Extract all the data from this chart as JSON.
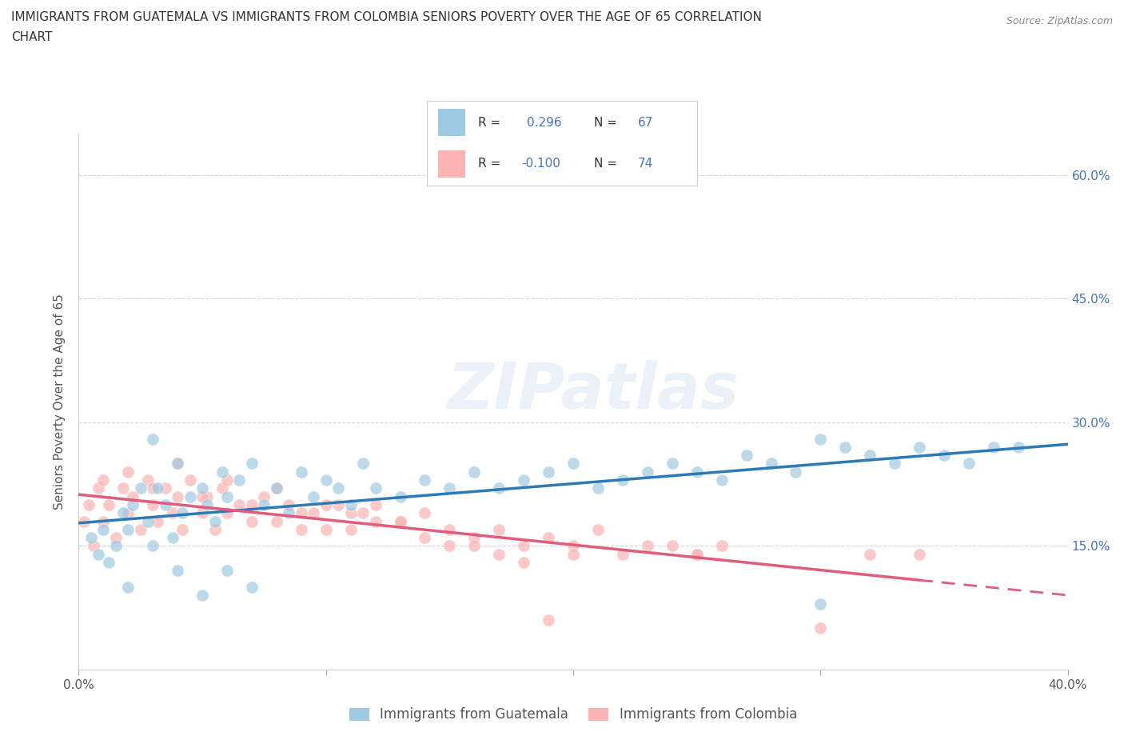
{
  "title_line1": "IMMIGRANTS FROM GUATEMALA VS IMMIGRANTS FROM COLOMBIA SENIORS POVERTY OVER THE AGE OF 65 CORRELATION",
  "title_line2": "CHART",
  "source": "Source: ZipAtlas.com",
  "ylabel": "Seniors Poverty Over the Age of 65",
  "xlim": [
    0.0,
    0.4
  ],
  "ylim": [
    0.0,
    0.65
  ],
  "guatemala_color": "#9ecae1",
  "colombia_color": "#fcb3b3",
  "guatemala_line_color": "#2c7bb6",
  "colombia_line_color": "#e05c7a",
  "R_guatemala": 0.296,
  "N_guatemala": 67,
  "R_colombia": -0.1,
  "N_colombia": 74,
  "watermark_text": "ZIPatlas",
  "background_color": "#ffffff",
  "guatemala_scatter_x": [
    0.005,
    0.008,
    0.01,
    0.012,
    0.015,
    0.018,
    0.02,
    0.022,
    0.025,
    0.028,
    0.03,
    0.032,
    0.035,
    0.038,
    0.04,
    0.042,
    0.045,
    0.05,
    0.052,
    0.055,
    0.058,
    0.06,
    0.065,
    0.07,
    0.075,
    0.08,
    0.085,
    0.09,
    0.095,
    0.1,
    0.105,
    0.11,
    0.115,
    0.12,
    0.13,
    0.14,
    0.15,
    0.16,
    0.17,
    0.18,
    0.19,
    0.2,
    0.21,
    0.22,
    0.23,
    0.24,
    0.25,
    0.26,
    0.27,
    0.28,
    0.29,
    0.3,
    0.31,
    0.32,
    0.33,
    0.34,
    0.35,
    0.36,
    0.37,
    0.38,
    0.02,
    0.03,
    0.04,
    0.05,
    0.06,
    0.07,
    0.3
  ],
  "guatemala_scatter_y": [
    0.16,
    0.14,
    0.17,
    0.13,
    0.15,
    0.19,
    0.17,
    0.2,
    0.22,
    0.18,
    0.15,
    0.22,
    0.2,
    0.16,
    0.25,
    0.19,
    0.21,
    0.22,
    0.2,
    0.18,
    0.24,
    0.21,
    0.23,
    0.25,
    0.2,
    0.22,
    0.19,
    0.24,
    0.21,
    0.23,
    0.22,
    0.2,
    0.25,
    0.22,
    0.21,
    0.23,
    0.22,
    0.24,
    0.22,
    0.23,
    0.24,
    0.25,
    0.22,
    0.23,
    0.24,
    0.25,
    0.24,
    0.23,
    0.26,
    0.25,
    0.24,
    0.28,
    0.27,
    0.26,
    0.25,
    0.27,
    0.26,
    0.25,
    0.27,
    0.27,
    0.1,
    0.28,
    0.12,
    0.09,
    0.12,
    0.1,
    0.08
  ],
  "colombia_scatter_x": [
    0.002,
    0.004,
    0.006,
    0.008,
    0.01,
    0.012,
    0.015,
    0.018,
    0.02,
    0.022,
    0.025,
    0.028,
    0.03,
    0.032,
    0.035,
    0.038,
    0.04,
    0.042,
    0.045,
    0.05,
    0.052,
    0.055,
    0.058,
    0.06,
    0.065,
    0.07,
    0.075,
    0.08,
    0.085,
    0.09,
    0.095,
    0.1,
    0.105,
    0.11,
    0.115,
    0.12,
    0.13,
    0.14,
    0.15,
    0.16,
    0.17,
    0.18,
    0.19,
    0.2,
    0.21,
    0.22,
    0.23,
    0.24,
    0.25,
    0.26,
    0.01,
    0.02,
    0.03,
    0.04,
    0.05,
    0.06,
    0.07,
    0.08,
    0.09,
    0.1,
    0.11,
    0.12,
    0.13,
    0.14,
    0.2,
    0.25,
    0.3,
    0.32,
    0.34,
    0.15,
    0.16,
    0.17,
    0.18,
    0.19
  ],
  "colombia_scatter_y": [
    0.18,
    0.2,
    0.15,
    0.22,
    0.18,
    0.2,
    0.16,
    0.22,
    0.19,
    0.21,
    0.17,
    0.23,
    0.2,
    0.18,
    0.22,
    0.19,
    0.21,
    0.17,
    0.23,
    0.19,
    0.21,
    0.17,
    0.22,
    0.19,
    0.2,
    0.18,
    0.21,
    0.18,
    0.2,
    0.17,
    0.19,
    0.17,
    0.2,
    0.17,
    0.19,
    0.18,
    0.18,
    0.16,
    0.17,
    0.16,
    0.17,
    0.15,
    0.16,
    0.15,
    0.17,
    0.14,
    0.15,
    0.15,
    0.14,
    0.15,
    0.23,
    0.24,
    0.22,
    0.25,
    0.21,
    0.23,
    0.2,
    0.22,
    0.19,
    0.2,
    0.19,
    0.2,
    0.18,
    0.19,
    0.14,
    0.14,
    0.05,
    0.14,
    0.14,
    0.15,
    0.15,
    0.14,
    0.13,
    0.06
  ]
}
